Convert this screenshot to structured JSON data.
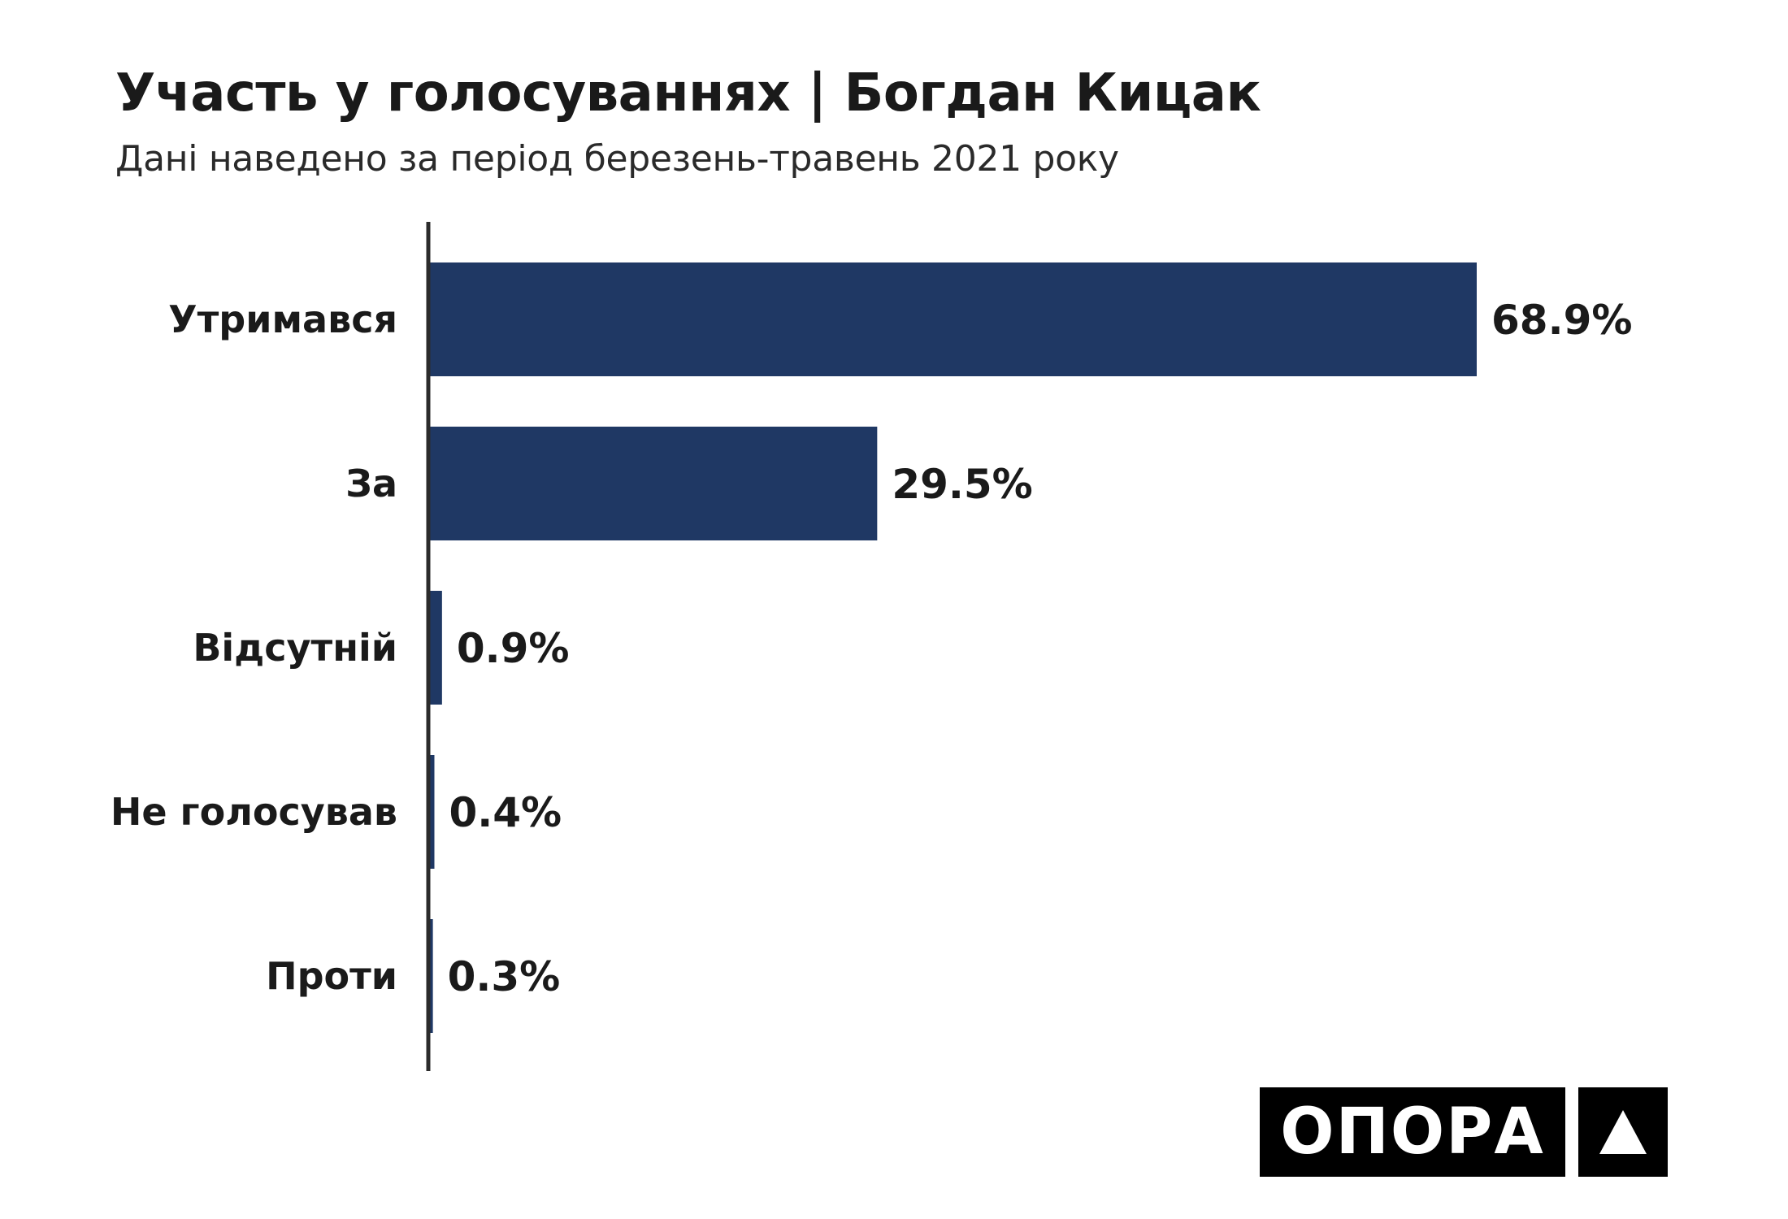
{
  "chart_data": {
    "type": "bar",
    "orientation": "horizontal",
    "title": "Участь у голосуваннях | Богдан Кицак",
    "subtitle": "Дані наведено за період березень-травень 2021 року",
    "categories": [
      "Утримався",
      "За",
      "Відсутній",
      "Не голосував",
      "Проти"
    ],
    "values": [
      68.9,
      29.5,
      0.9,
      0.4,
      0.3
    ],
    "value_labels": [
      "68.9%",
      "29.5%",
      "0.9%",
      "0.4%",
      "0.3%"
    ],
    "unit": "%",
    "xlim": [
      0,
      100
    ],
    "grid": false,
    "legend": "none",
    "bar_color": "#1f3864"
  },
  "logo": {
    "text": "ОПОРА",
    "mark": "triangle-icon"
  },
  "colors": {
    "bar": "#1f3864",
    "text": "#1a1a1a",
    "axis": "#2b2b2b",
    "logo_bg": "#000000",
    "logo_fg": "#ffffff"
  }
}
